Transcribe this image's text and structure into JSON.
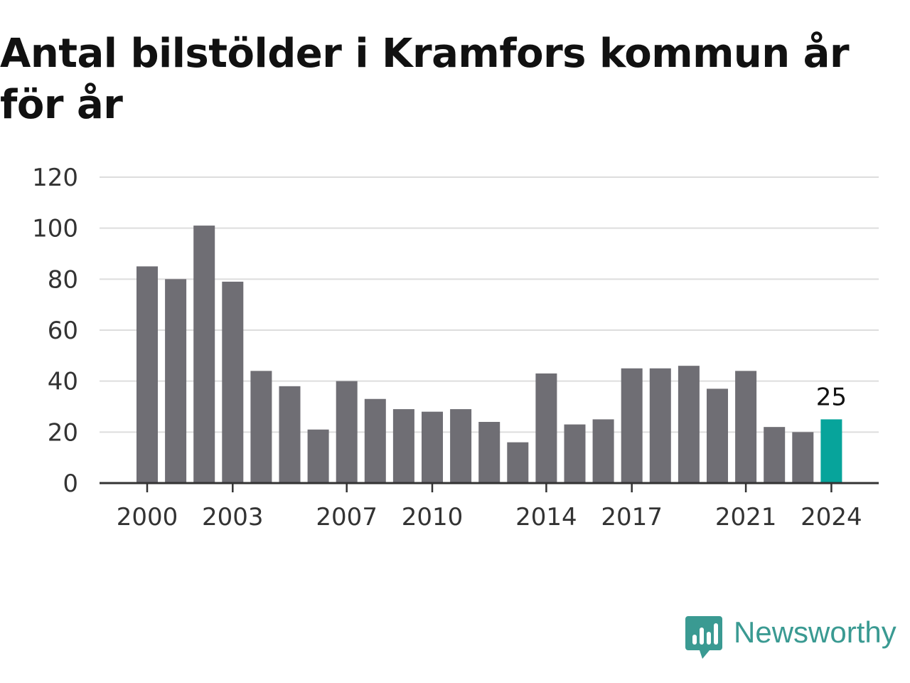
{
  "title": "Antal bilstölder i Kramfors kommun år för år",
  "logo": {
    "text": "Newsworthy",
    "icon": "bar-chart-speech-bubble-icon",
    "color": "#3a9a92"
  },
  "colors": {
    "bar": "#6f6e74",
    "highlight": "#07a49b",
    "grid": "#dddddd",
    "axis": "#333333"
  },
  "chart_data": {
    "type": "bar",
    "x": [
      2000,
      2001,
      2002,
      2003,
      2004,
      2005,
      2006,
      2007,
      2008,
      2009,
      2010,
      2011,
      2012,
      2013,
      2014,
      2015,
      2016,
      2017,
      2018,
      2019,
      2020,
      2021,
      2022,
      2023,
      2024
    ],
    "values": [
      85,
      80,
      101,
      79,
      44,
      38,
      21,
      40,
      33,
      29,
      28,
      29,
      24,
      16,
      43,
      23,
      25,
      45,
      45,
      46,
      37,
      44,
      22,
      20,
      25
    ],
    "x_tick_labels": [
      "2000",
      "2003",
      "2007",
      "2010",
      "2014",
      "2017",
      "2021",
      "2024"
    ],
    "y_ticks": [
      0,
      20,
      40,
      60,
      80,
      100,
      120
    ],
    "ylim": [
      0,
      120
    ],
    "grid": true,
    "highlight_category": 2024,
    "data_labels": [
      {
        "x": 2024,
        "text": "25"
      }
    ],
    "xlabel": "",
    "ylabel": ""
  }
}
